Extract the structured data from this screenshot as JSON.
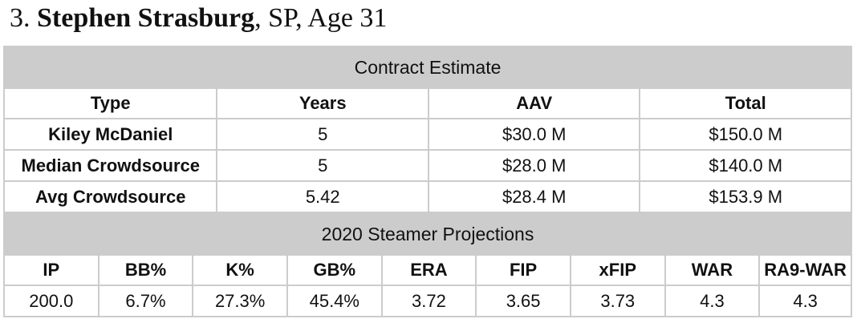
{
  "heading": {
    "rank": "3.",
    "name": "Stephen Strasburg",
    "details": ", SP, Age 31"
  },
  "contract": {
    "title": "Contract Estimate",
    "columns": [
      "Type",
      "Years",
      "AAV",
      "Total"
    ],
    "rows": [
      {
        "type": "Kiley McDaniel",
        "years": "5",
        "aav": "$30.0 M",
        "total": "$150.0 M"
      },
      {
        "type": "Median Crowdsource",
        "years": "5",
        "aav": "$28.0 M",
        "total": "$140.0 M"
      },
      {
        "type": "Avg Crowdsource",
        "years": "5.42",
        "aav": "$28.4 M",
        "total": "$153.9 M"
      }
    ]
  },
  "steamer": {
    "title": "2020 Steamer Projections",
    "columns": [
      "IP",
      "BB%",
      "K%",
      "GB%",
      "ERA",
      "FIP",
      "xFIP",
      "WAR",
      "RA9-WAR"
    ],
    "values": [
      "200.0",
      "6.7%",
      "27.3%",
      "45.4%",
      "3.72",
      "3.65",
      "3.73",
      "4.3",
      "4.3"
    ]
  },
  "colors": {
    "header_gray": "#cccccc",
    "cell_white": "#ffffff",
    "text": "#111111"
  }
}
